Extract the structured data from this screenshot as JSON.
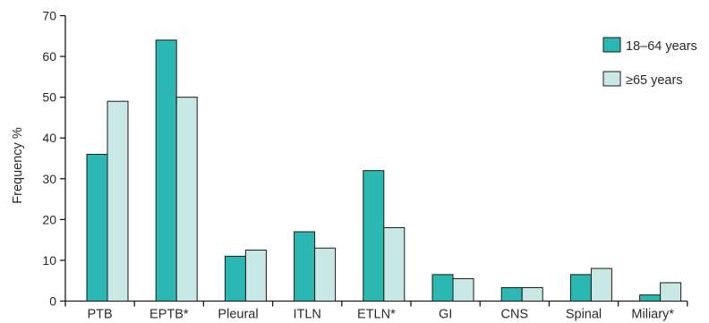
{
  "chart_data": {
    "type": "bar",
    "ylabel": "Frequency %",
    "xlabel": "",
    "ylim": [
      0,
      70
    ],
    "yticks": [
      0,
      10,
      20,
      30,
      40,
      50,
      60,
      70
    ],
    "grid": false,
    "legend_position": "top-right",
    "categories": [
      "PTB",
      "EPTB*",
      "Pleural",
      "ITLN",
      "ETLN*",
      "GI",
      "CNS",
      "Spinal",
      "Miliary*"
    ],
    "series": [
      {
        "name": "18–64 years",
        "color": "#2bb8b3",
        "values": [
          36,
          64,
          11,
          17,
          32,
          6.5,
          3.3,
          6.5,
          1.5
        ]
      },
      {
        "name": "≥65 years",
        "color": "#c8e8e6",
        "values": [
          49,
          50,
          12.5,
          13,
          18,
          5.5,
          3.3,
          8,
          4.5
        ]
      }
    ]
  }
}
